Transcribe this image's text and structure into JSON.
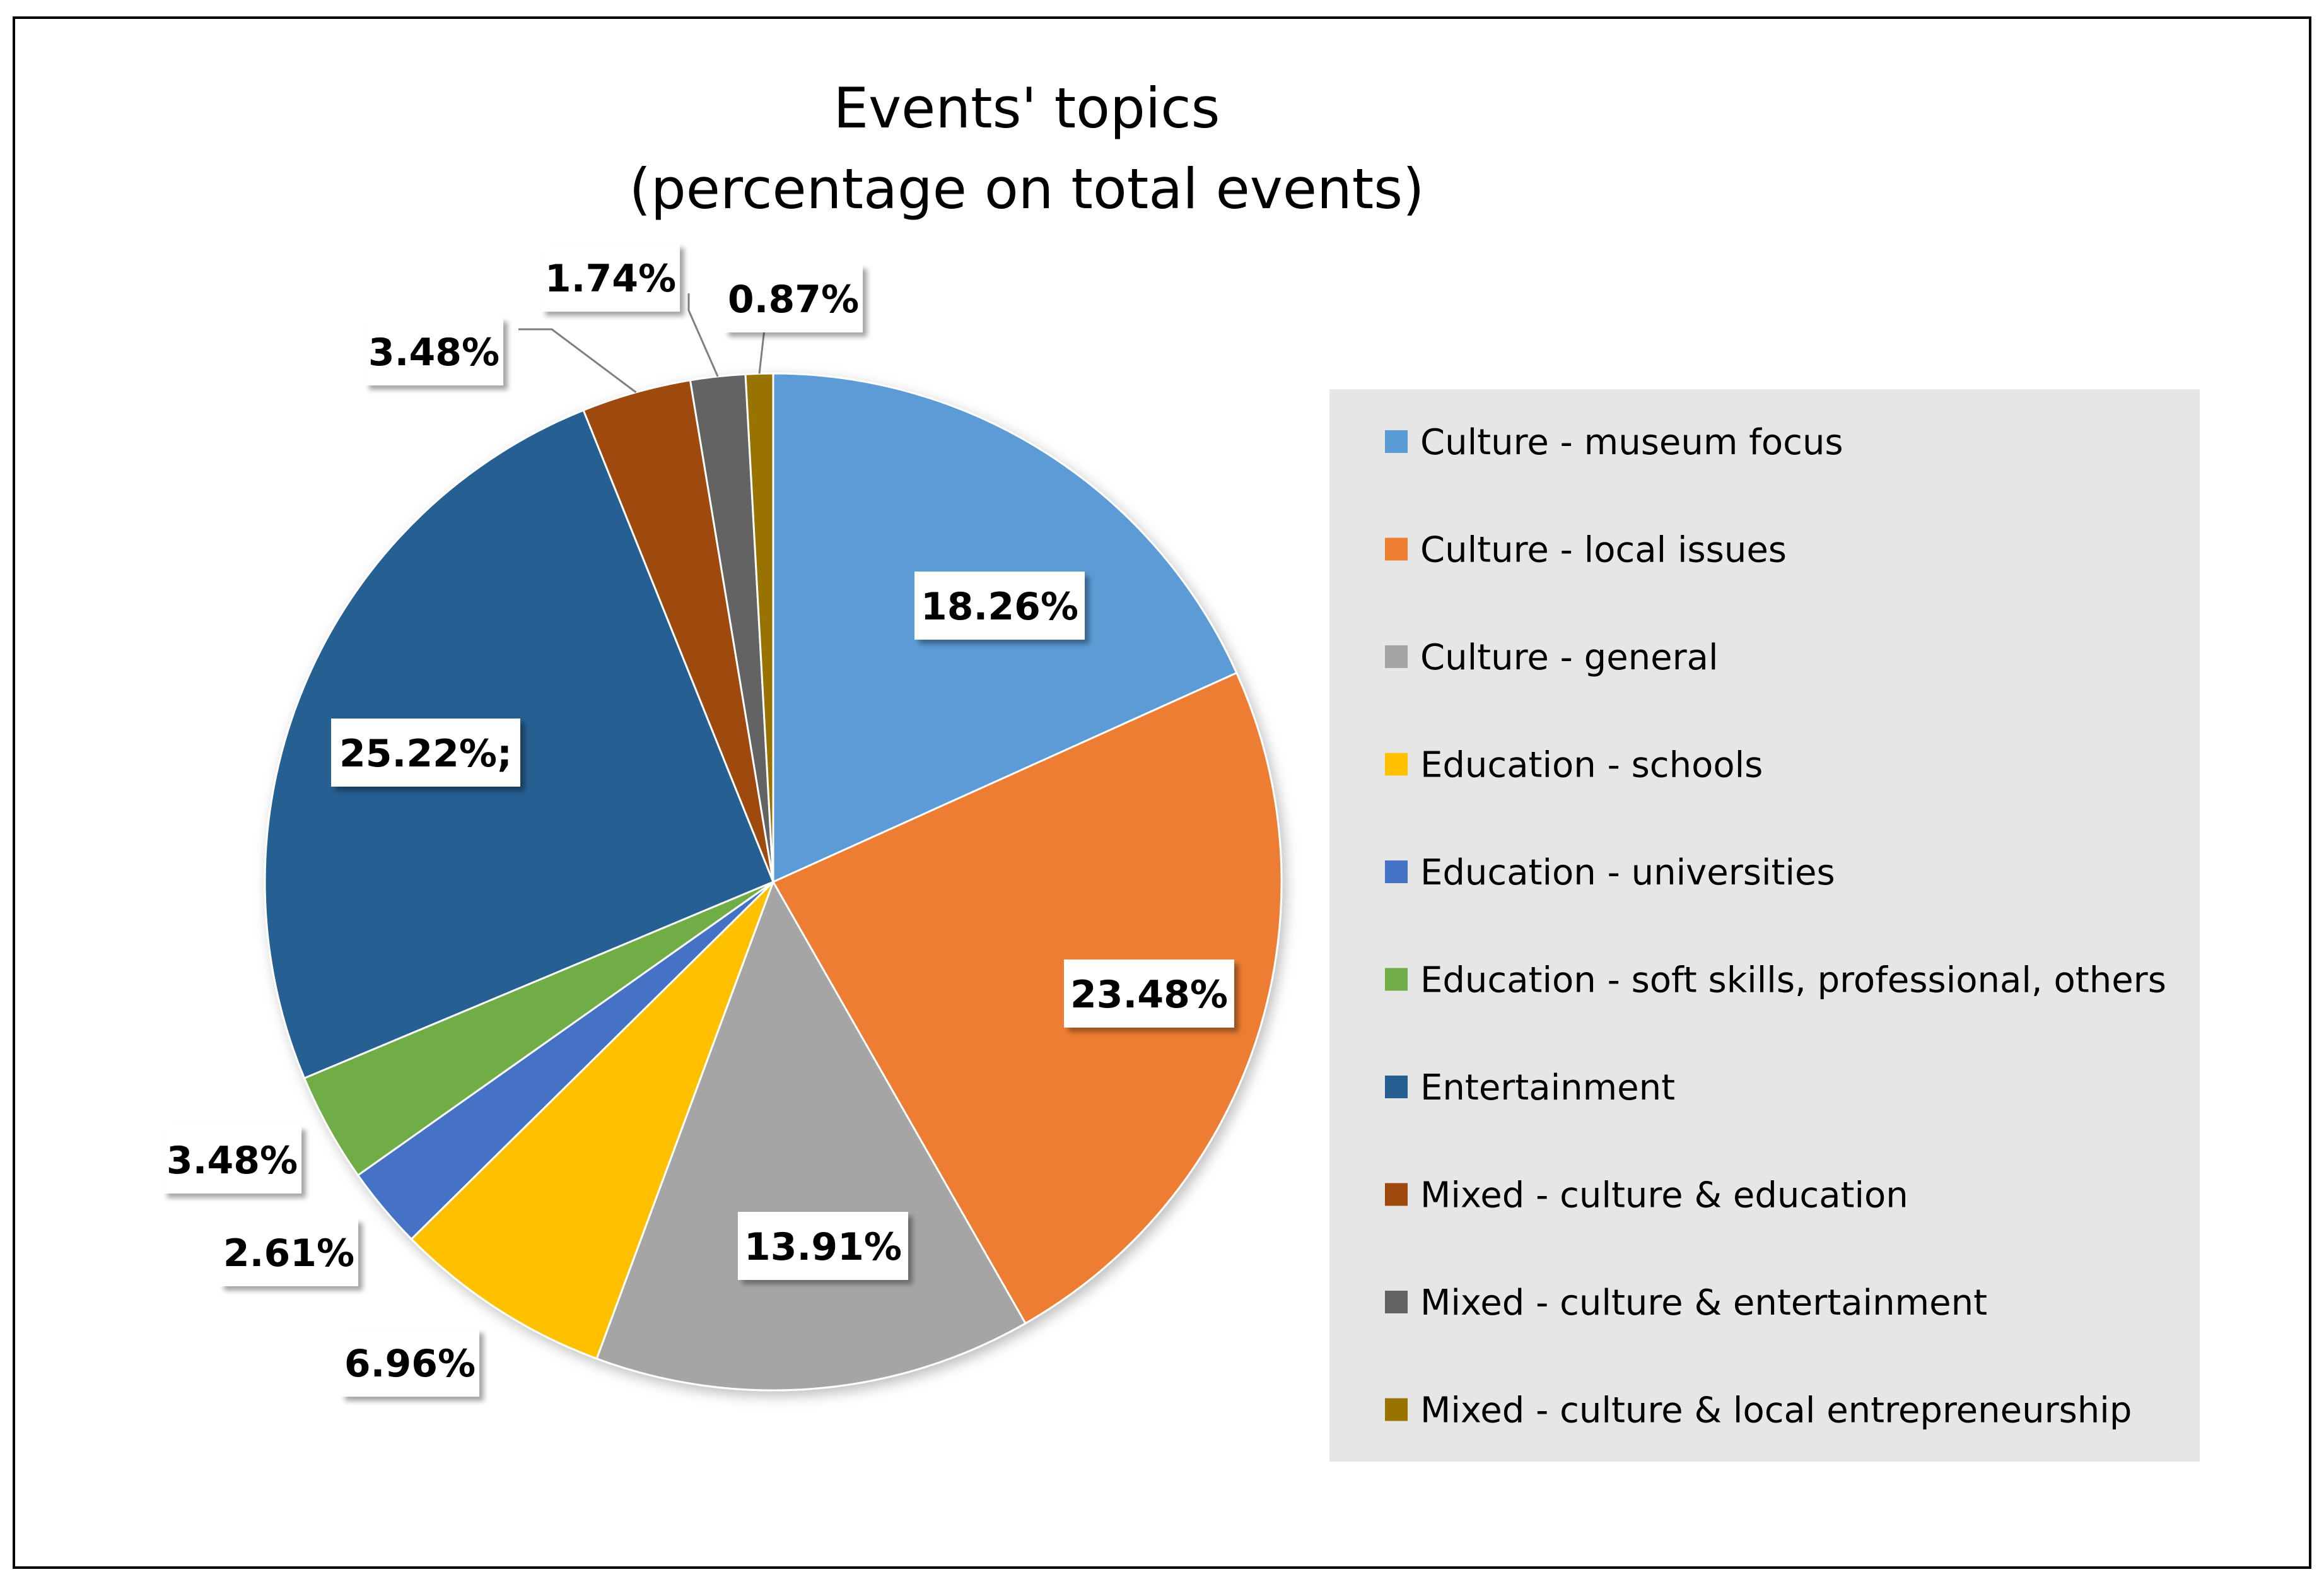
{
  "chart_data": {
    "type": "pie",
    "title": [
      "Events' topics",
      "(percentage on total events)"
    ],
    "start_angle_deg": 90,
    "direction": "clockwise",
    "legend_position": "right",
    "categories": [
      "Culture - museum focus",
      "Culture - local issues",
      "Culture - general",
      "Education - schools",
      "Education - universities",
      "Education - soft skills, professional, others",
      "Entertainment",
      "Mixed - culture & education",
      "Mixed - culture & entertainment",
      "Mixed - culture & local entrepreneurship"
    ],
    "values": [
      18.26,
      23.48,
      13.91,
      6.96,
      2.61,
      3.48,
      25.22,
      3.48,
      1.74,
      0.87
    ],
    "data_labels": [
      "18.26%",
      "23.48%",
      "13.91%",
      "6.96%",
      "2.61%",
      "3.48%",
      "25.22%;",
      "3.48%",
      "1.74%",
      "0.87%"
    ],
    "colors": [
      "#5B9BD5",
      "#ED7D31",
      "#A5A5A5",
      "#FFC000",
      "#4472C4",
      "#70AD47",
      "#255E91",
      "#9E480E",
      "#636363",
      "#997300"
    ]
  }
}
